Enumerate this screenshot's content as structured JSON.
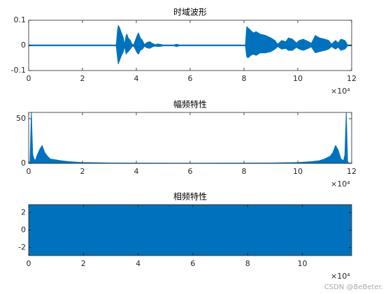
{
  "chart_data": [
    {
      "type": "band",
      "title": "时域波形",
      "color": "#0072bd",
      "xlim": [
        0,
        120000
      ],
      "ylim": [
        -0.1,
        0.1
      ],
      "xticks": [
        0,
        {
          "value": 20000,
          "label": "2"
        },
        {
          "value": 40000,
          "label": "4"
        },
        {
          "value": 60000,
          "label": "6"
        },
        {
          "value": 80000,
          "label": "8"
        },
        {
          "value": 100000,
          "label": "10"
        },
        {
          "value": 120000,
          "label": "12"
        }
      ],
      "yticks": [
        -0.1,
        0,
        0.1
      ],
      "x_exponent": "×10⁴",
      "x": [
        0,
        32500,
        33000,
        33300,
        33800,
        34500,
        35200,
        35600,
        36200,
        36500,
        37000,
        37800,
        38400,
        39000,
        40300,
        40800,
        41500,
        42300,
        43000,
        44000,
        45000,
        46000,
        47000,
        48000,
        49000,
        50000,
        54000,
        55000,
        56000,
        80500,
        81000,
        81500,
        82500,
        83500,
        84500,
        86000,
        88000,
        90000,
        91500,
        92500,
        94000,
        95500,
        96500,
        98000,
        99500,
        100500,
        102000,
        104000,
        105000,
        106500,
        108000,
        110000,
        111500,
        112500,
        114000,
        115000,
        116000,
        117500,
        118500,
        120000
      ],
      "upper": [
        0.002,
        0.002,
        0.06,
        0.08,
        0.07,
        0.05,
        0.03,
        0.005,
        0.04,
        0.045,
        0.03,
        0.02,
        0.005,
        0.003,
        0.04,
        0.05,
        0.03,
        0.02,
        0.004,
        0.012,
        0.015,
        0.008,
        0.003,
        0.006,
        0.004,
        0.002,
        0.002,
        0.005,
        0.002,
        0.002,
        0.075,
        0.07,
        0.06,
        0.05,
        0.055,
        0.045,
        0.04,
        0.03,
        0.02,
        0.005,
        0.02,
        0.015,
        0.03,
        0.025,
        0.01,
        0.02,
        0.025,
        0.015,
        0.008,
        0.04,
        0.03,
        0.025,
        0.02,
        0.005,
        0.02,
        0.01,
        0.025,
        0.02,
        0.002,
        0.002
      ],
      "lower": [
        -0.002,
        -0.002,
        -0.05,
        -0.075,
        -0.06,
        -0.04,
        -0.025,
        -0.005,
        -0.035,
        -0.03,
        -0.025,
        -0.015,
        -0.005,
        -0.003,
        -0.03,
        -0.035,
        -0.02,
        -0.015,
        -0.004,
        -0.01,
        -0.012,
        -0.006,
        -0.003,
        -0.005,
        -0.004,
        -0.002,
        -0.002,
        -0.005,
        -0.002,
        -0.002,
        -0.045,
        -0.05,
        -0.04,
        -0.035,
        -0.04,
        -0.03,
        -0.03,
        -0.025,
        -0.015,
        -0.005,
        -0.015,
        -0.012,
        -0.02,
        -0.02,
        -0.008,
        -0.015,
        -0.02,
        -0.012,
        -0.006,
        -0.03,
        -0.025,
        -0.02,
        -0.015,
        -0.005,
        -0.015,
        -0.008,
        -0.02,
        -0.015,
        -0.002,
        -0.002
      ]
    },
    {
      "type": "area",
      "title": "幅频特性",
      "color": "#0072bd",
      "xlim": [
        0,
        120000
      ],
      "ylim": [
        0,
        57
      ],
      "xticks": [
        0,
        {
          "value": 20000,
          "label": "2"
        },
        {
          "value": 40000,
          "label": "4"
        },
        {
          "value": 60000,
          "label": "6"
        },
        {
          "value": 80000,
          "label": "8"
        },
        {
          "value": 100000,
          "label": "10"
        },
        {
          "value": 120000,
          "label": "12"
        }
      ],
      "yticks": [
        0,
        50
      ],
      "x_exponent": "×10⁴",
      "x": [
        0,
        500,
        1000,
        1500,
        2000,
        2500,
        3000,
        4000,
        5000,
        6000,
        7000,
        8000,
        10000,
        12000,
        15000,
        20000,
        30000,
        60000,
        90000,
        100000,
        105000,
        108000,
        110000,
        112000,
        113000,
        114000,
        115000,
        116000,
        117000,
        117500,
        118000,
        118500,
        119000,
        119500,
        120000
      ],
      "values": [
        0.3,
        2,
        57,
        10,
        5,
        3,
        8,
        15,
        20,
        12,
        8,
        5,
        4,
        3,
        2,
        1,
        0.5,
        0.3,
        0.5,
        1,
        2,
        3,
        5,
        8,
        12,
        20,
        15,
        5,
        3,
        10,
        57,
        2,
        0.5,
        0.3,
        0.3
      ]
    },
    {
      "type": "band",
      "title": "相频特性",
      "color": "#0072bd",
      "xlim": [
        0,
        118000
      ],
      "ylim": [
        -2.9,
        2.9
      ],
      "xticks": [
        0,
        {
          "value": 20000,
          "label": "2"
        },
        {
          "value": 40000,
          "label": "4"
        },
        {
          "value": 60000,
          "label": "6"
        },
        {
          "value": 80000,
          "label": "8"
        },
        {
          "value": 100000,
          "label": "10"
        }
      ],
      "yticks": [
        -2,
        0,
        2
      ],
      "x_exponent": "×10⁴",
      "x": [
        0,
        118000
      ],
      "upper": [
        3.14,
        3.14
      ],
      "lower": [
        -3.14,
        -3.14
      ]
    }
  ],
  "watermark": "CSDN @BeBeter."
}
